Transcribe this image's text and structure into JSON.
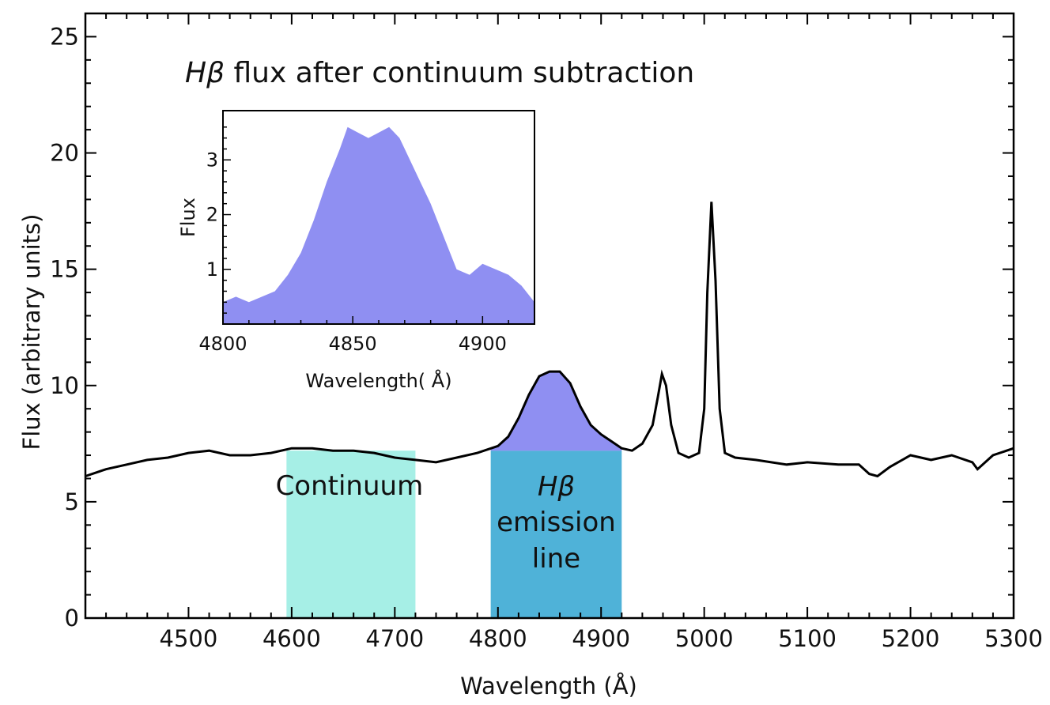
{
  "chart_data": {
    "type": "line",
    "title": "Hβ flux after continuum subtraction",
    "title_italic": "Hβ",
    "title_rest": " flux after continuum subtraction",
    "xlabel": "Wavelength (Å)",
    "ylabel": "Flux (arbitrary units)",
    "xlim": [
      4400,
      5300
    ],
    "ylim": [
      0,
      26
    ],
    "xticks": [
      "4500",
      "4600",
      "4700",
      "4800",
      "4900",
      "5000",
      "5100",
      "5200",
      "5300"
    ],
    "xtick_values": [
      4500,
      4600,
      4700,
      4800,
      4900,
      5000,
      5100,
      5200,
      5300
    ],
    "yticks": [
      "0",
      "5",
      "10",
      "15",
      "20",
      "25"
    ],
    "ytick_values": [
      0,
      5,
      10,
      15,
      20,
      25
    ],
    "bands": [
      {
        "name": "Continuum",
        "label_lines": [
          "Continuum"
        ],
        "x_range": [
          4595,
          4720
        ],
        "color": "#a6efe6"
      },
      {
        "name": "Hβ emission line",
        "label_italic": "Hβ",
        "label_lines": [
          "emission",
          "line"
        ],
        "x_range": [
          4793,
          4920
        ],
        "color": "#4fb2d8"
      }
    ],
    "series": [
      {
        "name": "spectrum",
        "color": "#000000",
        "x": [
          4400,
          4420,
          4440,
          4460,
          4480,
          4500,
          4520,
          4540,
          4560,
          4580,
          4600,
          4620,
          4640,
          4660,
          4680,
          4700,
          4720,
          4740,
          4760,
          4780,
          4800,
          4810,
          4820,
          4830,
          4840,
          4850,
          4860,
          4870,
          4880,
          4890,
          4900,
          4910,
          4920,
          4930,
          4940,
          4950,
          4955,
          4959,
          4963,
          4968,
          4975,
          4985,
          4995,
          5000,
          5003,
          5007,
          5011,
          5015,
          5020,
          5030,
          5050,
          5080,
          5100,
          5130,
          5150,
          5160,
          5168,
          5180,
          5200,
          5220,
          5240,
          5260,
          5265,
          5280,
          5300
        ],
        "y": [
          6.1,
          6.4,
          6.6,
          6.8,
          6.9,
          7.1,
          7.2,
          7.0,
          7.0,
          7.1,
          7.3,
          7.3,
          7.2,
          7.2,
          7.1,
          6.9,
          6.8,
          6.7,
          6.9,
          7.1,
          7.4,
          7.8,
          8.6,
          9.6,
          10.4,
          10.6,
          10.6,
          10.1,
          9.1,
          8.3,
          7.9,
          7.6,
          7.3,
          7.2,
          7.5,
          8.3,
          9.5,
          10.5,
          10.0,
          8.3,
          7.1,
          6.9,
          7.1,
          9.0,
          14.0,
          17.9,
          14.5,
          9.0,
          7.1,
          6.9,
          6.8,
          6.6,
          6.7,
          6.6,
          6.6,
          6.2,
          6.1,
          6.5,
          7.0,
          6.8,
          7.0,
          6.7,
          6.4,
          7.0,
          7.3
        ]
      }
    ],
    "inset": {
      "xlabel": "Wavelength( Å)",
      "ylabel": "Flux",
      "xlim": [
        4800,
        4920
      ],
      "ylim": [
        0,
        3.9
      ],
      "xticks": [
        "4800",
        "4850",
        "4900"
      ],
      "xtick_values": [
        4800,
        4850,
        4900
      ],
      "yticks": [
        "1",
        "2",
        "3"
      ],
      "ytick_values": [
        1,
        2,
        3
      ],
      "fill_color": "#8f8ff2",
      "series": [
        {
          "name": "Hβ continuum-subtracted flux",
          "x": [
            4800,
            4805,
            4810,
            4815,
            4820,
            4825,
            4830,
            4835,
            4840,
            4845,
            4848,
            4852,
            4856,
            4860,
            4864,
            4868,
            4872,
            4876,
            4880,
            4885,
            4890,
            4895,
            4900,
            4905,
            4910,
            4915,
            4920
          ],
          "y": [
            0.4,
            0.5,
            0.4,
            0.5,
            0.6,
            0.9,
            1.3,
            1.9,
            2.6,
            3.2,
            3.6,
            3.5,
            3.4,
            3.5,
            3.6,
            3.4,
            3.0,
            2.6,
            2.2,
            1.6,
            1.0,
            0.9,
            1.1,
            1.0,
            0.9,
            0.7,
            0.4
          ]
        }
      ]
    }
  }
}
